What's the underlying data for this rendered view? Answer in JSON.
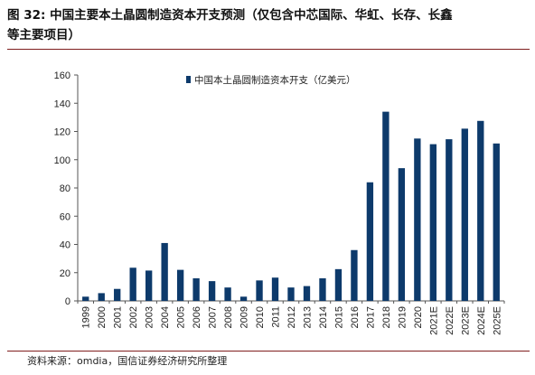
{
  "title": {
    "line1": "图 32:  中国主要本土晶圆制造资本开支预测（仅包含中芯国际、华虹、长存、长鑫",
    "line2": "等主要项目）"
  },
  "source": "资料来源：omdia，国信证券经济研究所整理",
  "colors": {
    "bar": "#0d3a6b",
    "axis": "#555555",
    "rule": "#7f1f1f"
  },
  "chart_data": {
    "type": "bar",
    "title": "图 32:  中国主要本土晶圆制造资本开支预测（仅包含中芯国际、华虹、长存、长鑫等主要项目）",
    "xlabel": "",
    "ylabel": "",
    "ylim": [
      0,
      160
    ],
    "yticks": [
      0,
      20,
      40,
      60,
      80,
      100,
      120,
      140,
      160
    ],
    "grid": false,
    "legend_position": "top-center",
    "categories": [
      "1999",
      "2000",
      "2001",
      "2002",
      "2003",
      "2004",
      "2005",
      "2006",
      "2007",
      "2008",
      "2009",
      "2010",
      "2011",
      "2012",
      "2013",
      "2014",
      "2015",
      "2016",
      "2017",
      "2018",
      "2019",
      "2020",
      "2021E",
      "2022E",
      "2023E",
      "2024E",
      "2025E"
    ],
    "series": [
      {
        "name": "中国本土晶圆制造资本开支（亿美元）",
        "values": [
          3,
          5.5,
          8.5,
          23.5,
          21.5,
          41,
          22,
          16,
          14,
          9.5,
          3,
          14.5,
          16.5,
          9.5,
          10.5,
          16,
          22.5,
          36,
          84,
          134,
          94,
          115,
          111,
          114.5,
          122,
          127.5,
          111.5
        ]
      }
    ]
  }
}
